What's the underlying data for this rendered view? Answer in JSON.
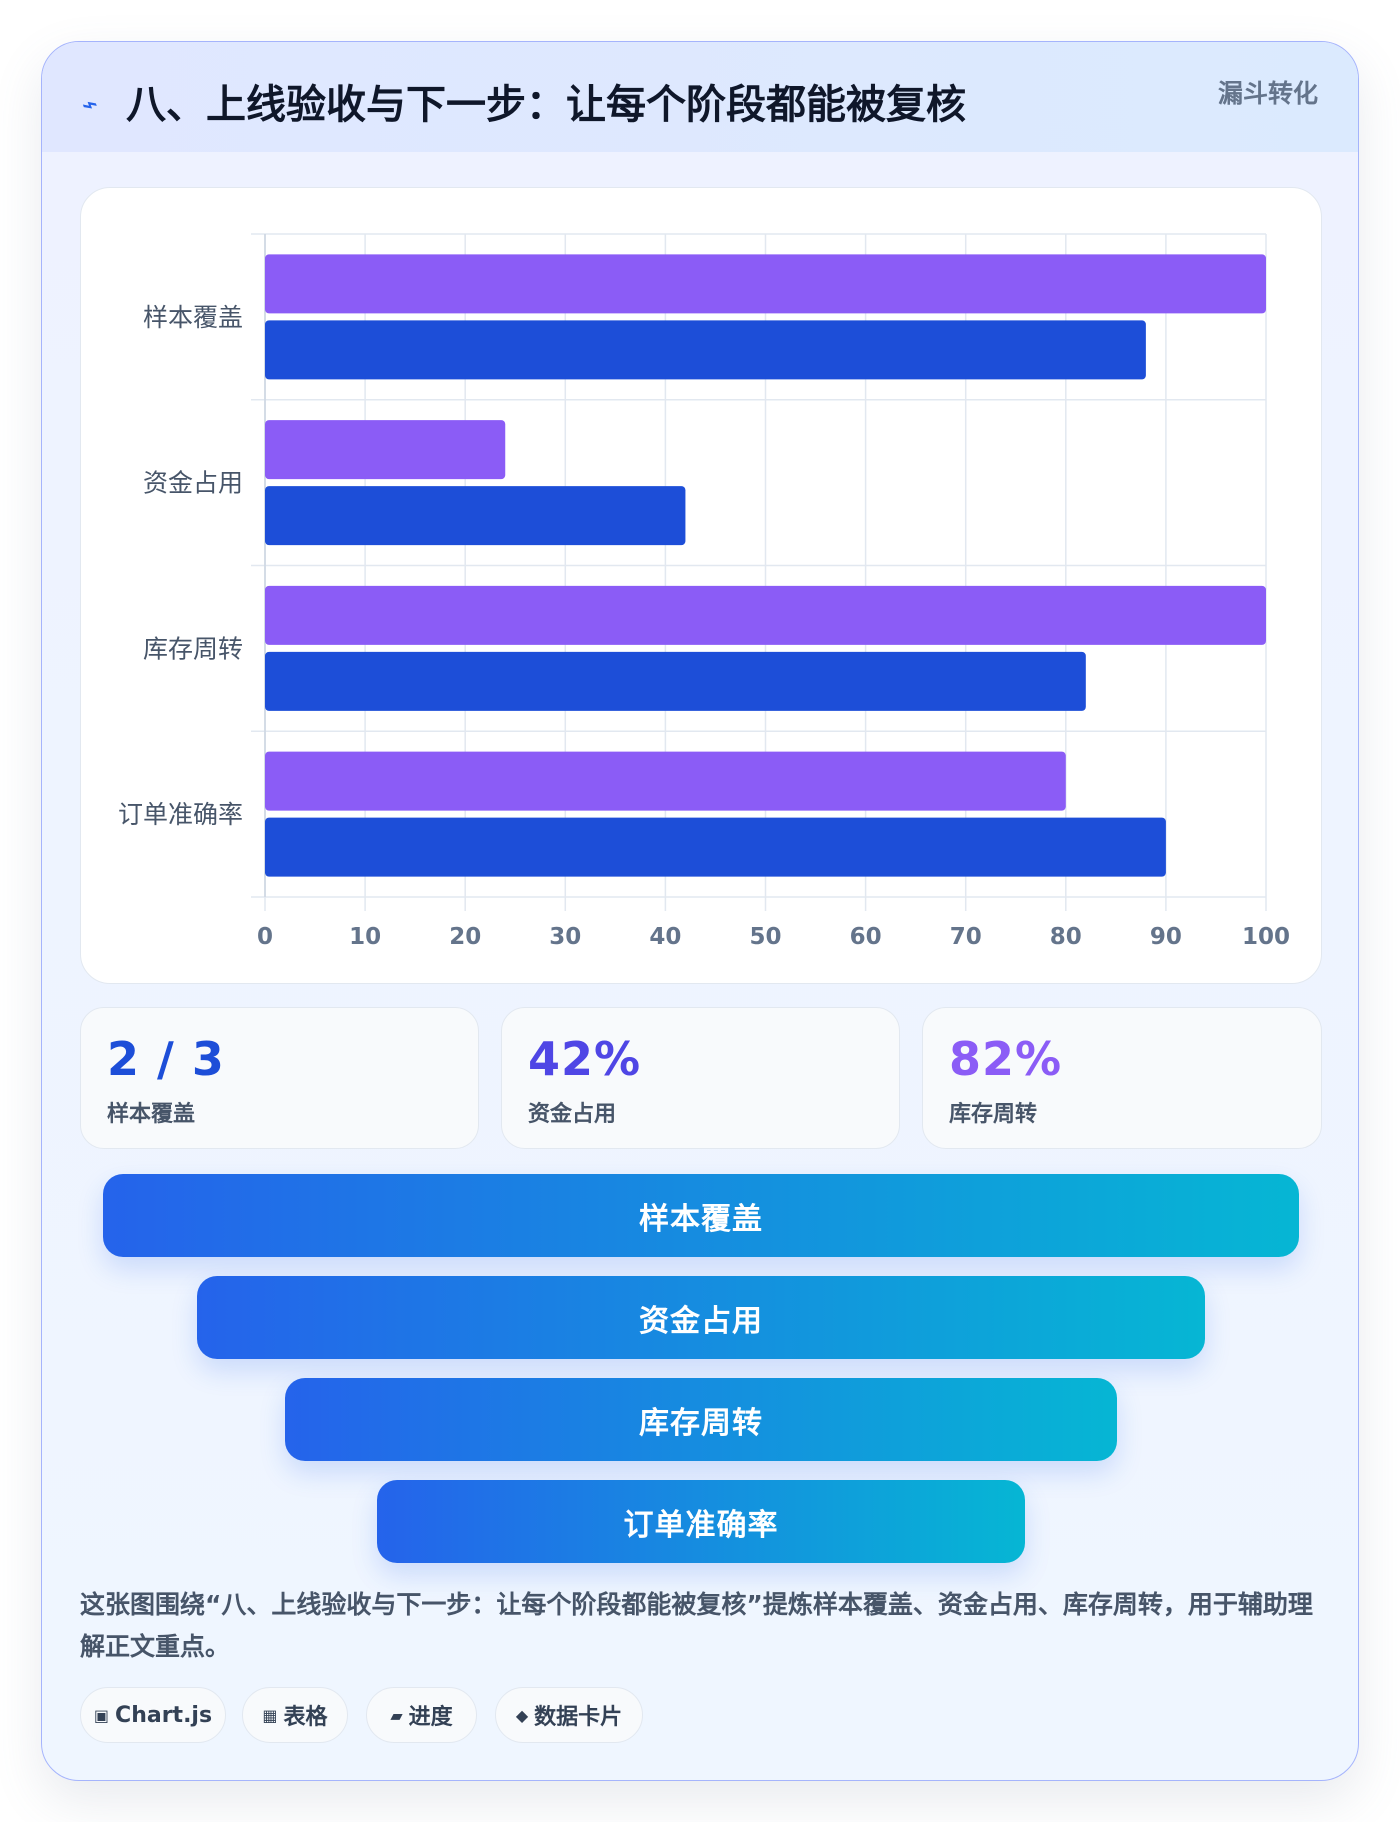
{
  "header": {
    "title": "八、上线验收与下一步：让每个阶段都能被复核",
    "tag": "漏斗转化",
    "icon": "lightning-icon"
  },
  "chart_data": {
    "type": "bar",
    "orientation": "horizontal",
    "categories": [
      "样本覆盖",
      "资金占用",
      "库存周转",
      "订单准确率"
    ],
    "series": [
      {
        "values": [
          100,
          24,
          100,
          80
        ],
        "color": "#8b5cf6"
      },
      {
        "values": [
          88,
          42,
          82,
          90
        ],
        "color": "#1d4ed8"
      }
    ],
    "x_ticks": [
      "0",
      "10",
      "20",
      "30",
      "40",
      "50",
      "60",
      "70",
      "80",
      "90",
      "100"
    ],
    "xlim": [
      0,
      100
    ],
    "grid": true,
    "legend": "none"
  },
  "stats": [
    {
      "value": "2 / 3",
      "label": "样本覆盖",
      "color": "#1d4ed8"
    },
    {
      "value": "42%",
      "label": "资金占用",
      "color": "#4f46e5"
    },
    {
      "value": "82%",
      "label": "库存周转",
      "color": "#8b5cf6"
    }
  ],
  "funnel": [
    {
      "label": "样本覆盖"
    },
    {
      "label": "资金占用"
    },
    {
      "label": "库存周转"
    },
    {
      "label": "订单准确率"
    }
  ],
  "caption": "这张图围绕“八、上线验收与下一步：让每个阶段都能被复核”提炼样本覆盖、资金占用、库存周转，用于辅助理解正文重点。",
  "chips": [
    {
      "icon": "▣",
      "icon_name": "chart-icon",
      "label": "Chart.js"
    },
    {
      "icon": "▦",
      "icon_name": "table-icon",
      "label": "表格"
    },
    {
      "icon": "▰",
      "icon_name": "progress-icon",
      "label": "进度"
    },
    {
      "icon": "◆",
      "icon_name": "diamond-icon",
      "label": "数据卡片"
    }
  ]
}
